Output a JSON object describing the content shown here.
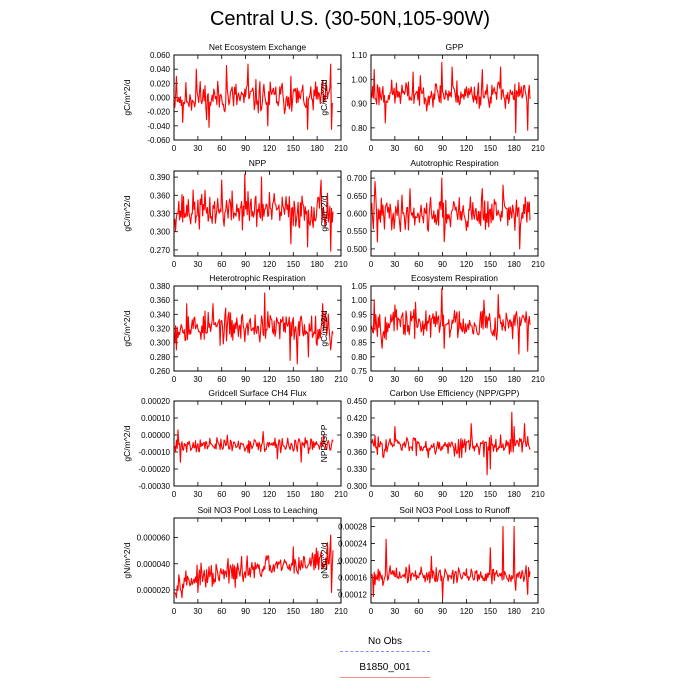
{
  "title": "Central U.S. (30-50N,105-90W)",
  "series_color": "#ff0000",
  "legend": {
    "items": [
      {
        "label": "No Obs",
        "style": "dashed",
        "color": "#8888ff"
      },
      {
        "label": "B1850_001",
        "style": "solid",
        "color": "#ff8888"
      }
    ]
  },
  "chart_data": [
    {
      "type": "line",
      "title": "Net Ecosystem Exchange",
      "ylabel": "gC/m^2/d",
      "xlim": [
        0,
        210
      ],
      "xticks": [
        "0",
        "30",
        "60",
        "90",
        "120",
        "150",
        "180",
        "210"
      ],
      "ylim": [
        -0.06,
        0.06
      ],
      "yticks": [
        "-0.060",
        "-0.040",
        "-0.020",
        "0.000",
        "0.020",
        "0.040",
        "0.060"
      ],
      "n": 200,
      "base": 0.0,
      "amp": 0.017,
      "trend": 0.0,
      "seed": 11,
      "spikes": [
        [
          3,
          0.03
        ],
        [
          11,
          -0.035
        ],
        [
          28,
          0.04
        ],
        [
          44,
          -0.042
        ],
        [
          66,
          0.045
        ],
        [
          93,
          0.047
        ],
        [
          118,
          -0.04
        ],
        [
          147,
          0.03
        ],
        [
          168,
          -0.045
        ],
        [
          197,
          0.047
        ],
        [
          198,
          -0.045
        ]
      ]
    },
    {
      "type": "line",
      "title": "GPP",
      "ylabel": "gC/m^2/d",
      "xlim": [
        0,
        210
      ],
      "xticks": [
        "0",
        "30",
        "60",
        "90",
        "120",
        "150",
        "180",
        "210"
      ],
      "ylim": [
        0.75,
        1.1
      ],
      "yticks": [
        "0.80",
        "0.90",
        "1.00",
        "1.10"
      ],
      "n": 200,
      "base": 0.94,
      "amp": 0.04,
      "trend": 0.0,
      "seed": 23,
      "spikes": [
        [
          4,
          1.04
        ],
        [
          18,
          0.82
        ],
        [
          53,
          1.03
        ],
        [
          89,
          1.07
        ],
        [
          102,
          1.05
        ],
        [
          140,
          1.04
        ],
        [
          163,
          1.05
        ],
        [
          182,
          0.78
        ],
        [
          197,
          0.79
        ]
      ]
    },
    {
      "type": "line",
      "title": "NPP",
      "ylabel": "gC/m^2/d",
      "xlim": [
        0,
        210
      ],
      "xticks": [
        "0",
        "30",
        "60",
        "90",
        "120",
        "150",
        "180",
        "210"
      ],
      "ylim": [
        0.26,
        0.4
      ],
      "yticks": [
        "0.270",
        "0.300",
        "0.330",
        "0.360",
        "0.390"
      ],
      "n": 200,
      "base": 0.335,
      "amp": 0.022,
      "trend": 0.0,
      "seed": 37,
      "spikes": [
        [
          60,
          0.385
        ],
        [
          89,
          0.395
        ],
        [
          110,
          0.39
        ],
        [
          147,
          0.28
        ],
        [
          168,
          0.275
        ],
        [
          185,
          0.385
        ],
        [
          197,
          0.268
        ]
      ]
    },
    {
      "type": "line",
      "title": "Autotrophic Respiration",
      "ylabel": "gC/m^2/d",
      "xlim": [
        0,
        210
      ],
      "xticks": [
        "0",
        "30",
        "60",
        "90",
        "120",
        "150",
        "180",
        "210"
      ],
      "ylim": [
        0.48,
        0.72
      ],
      "yticks": [
        "0.500",
        "0.550",
        "0.600",
        "0.650",
        "0.700"
      ],
      "n": 200,
      "base": 0.6,
      "amp": 0.035,
      "trend": 0.0,
      "seed": 41,
      "spikes": [
        [
          5,
          0.69
        ],
        [
          8,
          0.52
        ],
        [
          49,
          0.67
        ],
        [
          89,
          0.7
        ],
        [
          92,
          0.52
        ],
        [
          140,
          0.67
        ],
        [
          166,
          0.68
        ],
        [
          187,
          0.5
        ],
        [
          193,
          0.6
        ]
      ]
    },
    {
      "type": "line",
      "title": "Heterotrophic Respiration",
      "ylabel": "gC/m^2/d",
      "xlim": [
        0,
        210
      ],
      "xticks": [
        "0",
        "30",
        "60",
        "90",
        "120",
        "150",
        "180",
        "210"
      ],
      "ylim": [
        0.26,
        0.38
      ],
      "yticks": [
        "0.260",
        "0.280",
        "0.300",
        "0.320",
        "0.340",
        "0.360",
        "0.380"
      ],
      "n": 200,
      "base": 0.322,
      "amp": 0.016,
      "trend": 0.0,
      "seed": 53,
      "spikes": [
        [
          3,
          0.29
        ],
        [
          16,
          0.355
        ],
        [
          49,
          0.355
        ],
        [
          114,
          0.37
        ],
        [
          146,
          0.275
        ],
        [
          155,
          0.27
        ],
        [
          169,
          0.28
        ],
        [
          187,
          0.355
        ],
        [
          197,
          0.29
        ]
      ]
    },
    {
      "type": "line",
      "title": "Ecosystem Respiration",
      "ylabel": "gC/m^2/d",
      "xlim": [
        0,
        210
      ],
      "xticks": [
        "0",
        "30",
        "60",
        "90",
        "120",
        "150",
        "180",
        "210"
      ],
      "ylim": [
        0.75,
        1.05
      ],
      "yticks": [
        "0.75",
        "0.80",
        "0.85",
        "0.90",
        "0.95",
        "1.00",
        "1.05"
      ],
      "n": 200,
      "base": 0.92,
      "amp": 0.04,
      "trend": 0.0,
      "seed": 67,
      "spikes": [
        [
          4,
          1.0
        ],
        [
          14,
          0.83
        ],
        [
          89,
          1.04
        ],
        [
          92,
          0.83
        ],
        [
          142,
          1.0
        ],
        [
          160,
          1.02
        ],
        [
          186,
          0.81
        ],
        [
          197,
          0.82
        ]
      ]
    },
    {
      "type": "line",
      "title": "Gridcell Surface CH4 Flux",
      "ylabel": "gC/m^2/d",
      "xlim": [
        0,
        210
      ],
      "xticks": [
        "0",
        "30",
        "60",
        "90",
        "120",
        "150",
        "180",
        "210"
      ],
      "ylim": [
        -0.0003,
        0.0002
      ],
      "yticks": [
        "-0.00030",
        "-0.00020",
        "-0.00010",
        "0.00000",
        "0.00010",
        "0.00020"
      ],
      "n": 200,
      "base": -6e-05,
      "amp": 3e-05,
      "trend": 0.0,
      "seed": 71,
      "spikes": [
        [
          2,
          -0.0001
        ],
        [
          5,
          3e-05
        ],
        [
          8,
          -0.00016
        ],
        [
          67,
          0.0
        ],
        [
          112,
          2e-05
        ],
        [
          130,
          -0.00014
        ],
        [
          160,
          -0.00016
        ],
        [
          188,
          0.0
        ]
      ]
    },
    {
      "type": "line",
      "title": "Carbon Use Efficiency (NPP/GPP)",
      "ylabel": "NPP/GPP",
      "xlim": [
        0,
        210
      ],
      "xticks": [
        "0",
        "30",
        "60",
        "90",
        "120",
        "150",
        "180",
        "210"
      ],
      "ylim": [
        0.3,
        0.45
      ],
      "yticks": [
        "0.300",
        "0.330",
        "0.360",
        "0.390",
        "0.420",
        "0.450"
      ],
      "n": 200,
      "base": 0.372,
      "amp": 0.012,
      "trend": 0.0,
      "seed": 83,
      "spikes": [
        [
          30,
          0.405
        ],
        [
          72,
          0.35
        ],
        [
          111,
          0.35
        ],
        [
          126,
          0.41
        ],
        [
          146,
          0.32
        ],
        [
          150,
          0.33
        ],
        [
          177,
          0.43
        ],
        [
          180,
          0.405
        ],
        [
          193,
          0.41
        ]
      ]
    },
    {
      "type": "line",
      "title": "Soil NO3 Pool Loss to Leaching",
      "ylabel": "gN/m^2/d",
      "xlim": [
        0,
        210
      ],
      "xticks": [
        "0",
        "30",
        "60",
        "90",
        "120",
        "150",
        "180",
        "210"
      ],
      "ylim": [
        1e-05,
        7.5e-05
      ],
      "yticks": [
        "0.000020",
        "0.000040",
        "0.000060"
      ],
      "n": 200,
      "base": 2.6e-05,
      "amp": 6.5e-06,
      "trend": 8.5e-08,
      "seed": 97,
      "spikes": [
        [
          3,
          1.4e-05
        ],
        [
          30,
          1.8e-05
        ],
        [
          68,
          4.4e-05
        ],
        [
          92,
          4.6e-05
        ],
        [
          118,
          4.6e-05
        ],
        [
          150,
          5.3e-05
        ],
        [
          179,
          5.2e-05
        ],
        [
          193,
          5.6e-05
        ],
        [
          197,
          6.2e-05
        ],
        [
          198,
          1.8e-05
        ]
      ]
    },
    {
      "type": "line",
      "title": "Soil NO3 Pool Loss to Runoff",
      "ylabel": "gN/m^2/d",
      "xlim": [
        0,
        210
      ],
      "xticks": [
        "0",
        "30",
        "60",
        "90",
        "120",
        "150",
        "180",
        "210"
      ],
      "ylim": [
        0.0001,
        0.0003
      ],
      "yticks": [
        "0.00012",
        "0.00016",
        "0.00020",
        "0.00024",
        "0.00028"
      ],
      "n": 200,
      "base": 0.000165,
      "amp": 1.4e-05,
      "trend": 0.0,
      "seed": 101,
      "spikes": [
        [
          3,
          0.000115
        ],
        [
          19,
          0.00025
        ],
        [
          48,
          0.00019
        ],
        [
          76,
          0.00021
        ],
        [
          90,
          0.00011
        ],
        [
          150,
          0.00023
        ],
        [
          166,
          0.00028
        ],
        [
          180,
          0.00028
        ],
        [
          182,
          0.00013
        ],
        [
          197,
          0.00012
        ]
      ]
    }
  ]
}
